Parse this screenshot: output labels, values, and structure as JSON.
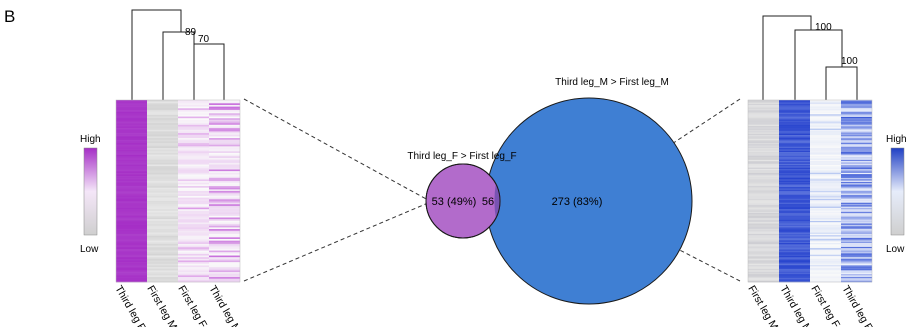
{
  "panel_label": "B",
  "left_heatmap": {
    "scale_high": "High",
    "scale_low": "Low",
    "columns": [
      "Third leg F",
      "First leg M",
      "First leg F",
      "Third leg M"
    ],
    "bootstrap": [
      "89",
      "70"
    ],
    "color": "#9e2bbf"
  },
  "right_heatmap": {
    "scale_high": "High",
    "scale_low": "Low",
    "columns": [
      "First leg M",
      "Third leg M",
      "First leg F",
      "Third leg F"
    ],
    "bootstrap": [
      "100",
      "100"
    ],
    "color": "#2a48c9"
  },
  "venn": {
    "small_title": "Third leg_F > First leg_F",
    "large_title": "Third leg_M > First leg_M",
    "small_only": "53 (49%)",
    "overlap": "56",
    "large_only": "273 (83%)",
    "small_color": "#b26bcb",
    "large_color": "#3f7fd3"
  }
}
